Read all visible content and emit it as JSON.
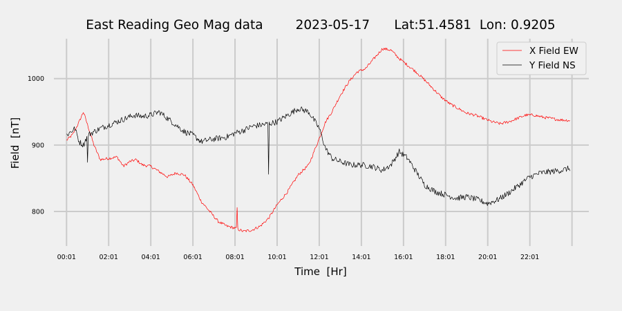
{
  "chart_data": {
    "type": "line",
    "title": "East Reading Geo Mag data        2023-05-17      Lat:51.4581  Lon: 0.9205",
    "xlabel": "Time  [Hr]",
    "ylabel": "Field  [nT]",
    "xlim": [
      -0.6,
      24.8
    ],
    "ylim": [
      748,
      1060
    ],
    "x_tick_values": [
      0,
      2,
      4,
      6,
      8,
      10,
      12,
      14,
      16,
      18,
      20,
      22,
      24
    ],
    "x_tick_labels": [
      "00:01",
      "02:01",
      "04:01",
      "06:01",
      "08:01",
      "10:01",
      "12:01",
      "14:01",
      "16:01",
      "18:01",
      "20:01",
      "22:01",
      ""
    ],
    "y_tick_values": [
      800,
      900,
      1000
    ],
    "y_tick_labels": [
      "800",
      "900",
      "1000"
    ],
    "grid": true,
    "legend_position": "top-right",
    "series": [
      {
        "name": "X Field EW",
        "color": "#ff0000",
        "x": [
          0,
          0.3,
          0.6,
          0.8,
          1.0,
          1.3,
          1.6,
          2.0,
          2.4,
          2.7,
          3.0,
          3.3,
          3.6,
          4.0,
          4.4,
          4.8,
          5.2,
          5.6,
          6.0,
          6.4,
          6.8,
          7.2,
          7.6,
          8.0,
          8.4,
          8.8,
          9.2,
          9.6,
          10.0,
          10.5,
          11.0,
          11.5,
          12.0,
          12.3,
          12.6,
          13.0,
          13.4,
          13.8,
          14.2,
          14.6,
          15.0,
          15.4,
          15.8,
          16.2,
          16.6,
          17.0,
          17.4,
          17.8,
          18.2,
          18.6,
          19.0,
          19.4,
          19.8,
          20.2,
          20.6,
          21.0,
          21.4,
          21.8,
          22.2,
          22.6,
          23.0,
          23.4,
          23.9
        ],
        "y": [
          907,
          916,
          935,
          950,
          930,
          900,
          878,
          880,
          882,
          868,
          875,
          878,
          870,
          868,
          860,
          852,
          858,
          855,
          840,
          815,
          800,
          785,
          778,
          775,
          770,
          772,
          778,
          790,
          810,
          830,
          855,
          870,
          910,
          935,
          950,
          975,
          995,
          1010,
          1015,
          1030,
          1045,
          1043,
          1030,
          1020,
          1010,
          998,
          985,
          972,
          962,
          955,
          948,
          945,
          940,
          935,
          932,
          935,
          940,
          945,
          945,
          942,
          940,
          938,
          937
        ]
      },
      {
        "name": "Y Field NS",
        "color": "#000000",
        "x": [
          0,
          0.2,
          0.4,
          0.6,
          0.8,
          1.0,
          1.3,
          1.6,
          2.0,
          2.4,
          2.8,
          3.2,
          3.6,
          4.0,
          4.4,
          4.8,
          5.2,
          5.6,
          6.0,
          6.4,
          6.8,
          7.2,
          7.6,
          8.0,
          8.4,
          8.8,
          9.2,
          9.6,
          10.0,
          10.5,
          11.0,
          11.5,
          12.0,
          12.3,
          12.6,
          13.0,
          13.5,
          14.0,
          14.5,
          15.0,
          15.4,
          15.8,
          16.2,
          16.6,
          17.0,
          17.5,
          18.0,
          18.5,
          19.0,
          19.5,
          20.0,
          20.5,
          21.0,
          21.5,
          22.0,
          22.5,
          23.0,
          23.5,
          23.9
        ],
        "y": [
          915,
          920,
          925,
          905,
          900,
          915,
          920,
          925,
          930,
          935,
          940,
          945,
          943,
          945,
          950,
          940,
          930,
          920,
          915,
          905,
          908,
          910,
          912,
          918,
          922,
          928,
          930,
          932,
          935,
          945,
          955,
          950,
          925,
          895,
          880,
          875,
          870,
          870,
          868,
          862,
          870,
          890,
          880,
          860,
          840,
          830,
          825,
          820,
          822,
          818,
          812,
          818,
          828,
          840,
          852,
          858,
          860,
          862,
          865
        ]
      }
    ],
    "annotations": [
      {
        "type": "spike",
        "series": "Y Field NS",
        "x": 9.6,
        "from": 930,
        "to": 856
      },
      {
        "type": "spike",
        "series": "Y Field NS",
        "x": 1.0,
        "from": 915,
        "to": 874
      },
      {
        "type": "spike",
        "series": "X Field EW",
        "x": 8.1,
        "from": 778,
        "to": 806
      }
    ]
  }
}
